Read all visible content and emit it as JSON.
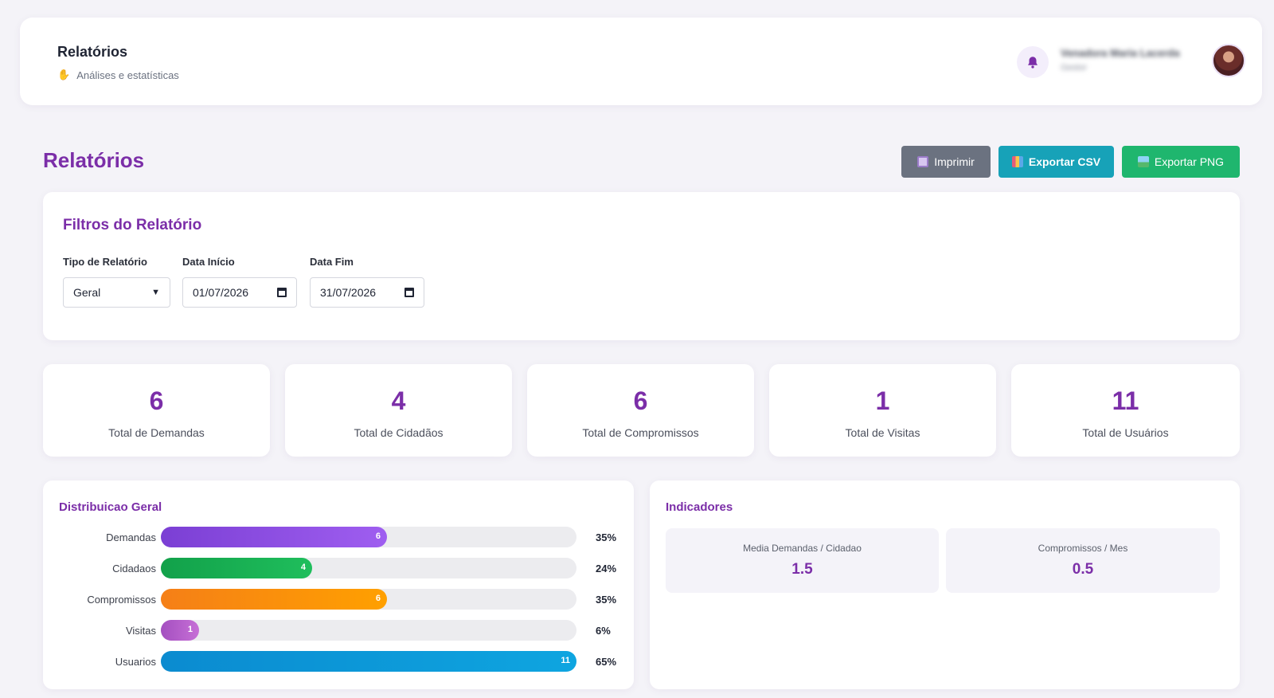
{
  "header": {
    "title": "Relatórios",
    "subtitle": "Análises e estatísticas",
    "user_name": "Venadora Maria Lacerda",
    "user_role": "Gestor"
  },
  "page": {
    "title": "Relatórios",
    "actions": {
      "print": "Imprimir",
      "export_csv": "Exportar CSV",
      "export_png": "Exportar PNG"
    }
  },
  "filters": {
    "title": "Filtros do Relatório",
    "report_type": {
      "label": "Tipo de Relatório",
      "value": "Geral"
    },
    "start_date": {
      "label": "Data Início",
      "value": "01/07/2026"
    },
    "end_date": {
      "label": "Data Fim",
      "value": "31/07/2026"
    }
  },
  "stats": [
    {
      "value": "6",
      "label": "Total de Demandas"
    },
    {
      "value": "4",
      "label": "Total de Cidadãos"
    },
    {
      "value": "6",
      "label": "Total de Compromissos"
    },
    {
      "value": "1",
      "label": "Total de Visitas"
    },
    {
      "value": "11",
      "label": "Total de Usuários"
    }
  ],
  "distribution": {
    "title": "Distribuicao Geral",
    "rows": [
      {
        "label": "Demandas",
        "value": "6",
        "percent": "35%",
        "fraction": 0.545,
        "color_from": "#7b3fd4",
        "color_to": "#9f5ef0"
      },
      {
        "label": "Cidadaos",
        "value": "4",
        "percent": "24%",
        "fraction": 0.364,
        "color_from": "#12a14a",
        "color_to": "#1fbe5c"
      },
      {
        "label": "Compromissos",
        "value": "6",
        "percent": "35%",
        "fraction": 0.545,
        "color_from": "#f57f17",
        "color_to": "#ffa000"
      },
      {
        "label": "Visitas",
        "value": "1",
        "percent": "6%",
        "fraction": 0.091,
        "color_from": "#a44fc0",
        "color_to": "#c66fd6"
      },
      {
        "label": "Usuarios",
        "value": "11",
        "percent": "65%",
        "fraction": 1.0,
        "color_from": "#0b8bd0",
        "color_to": "#0ea5e0"
      }
    ]
  },
  "indicators": {
    "title": "Indicadores",
    "items": [
      {
        "label": "Media Demandas / Cidadao",
        "value": "1.5"
      },
      {
        "label": "Compromissos / Mes",
        "value": "0.5"
      }
    ]
  },
  "icons": {
    "hand": "waving-hand-icon",
    "bell": "bell-icon",
    "print": "printer-icon",
    "csv": "bar-chart-icon",
    "png": "image-icon",
    "calendar": "calendar-icon",
    "select": "chevron-down-icon"
  },
  "colors": {
    "accent": "#7b2ea8",
    "print_button": "#6b7280",
    "csv_button": "#17a2b8",
    "png_button": "#1fb66e"
  }
}
